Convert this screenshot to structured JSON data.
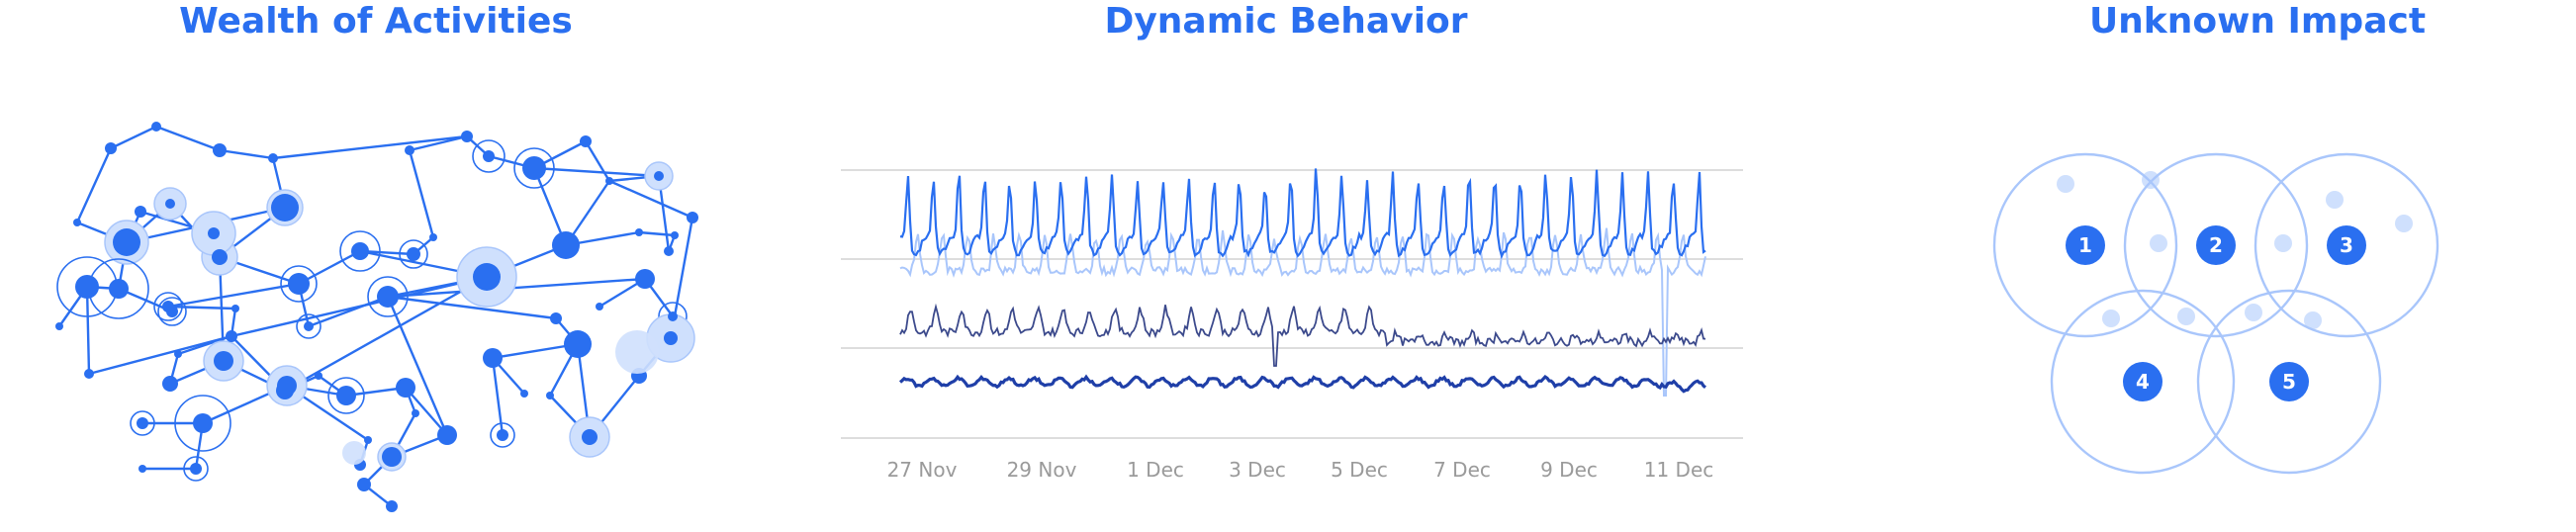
{
  "panels": {
    "network": {
      "title": "Wealth of Activities"
    },
    "chart": {
      "title": "Dynamic Behavior"
    },
    "venn": {
      "title": "Unknown Impact"
    }
  },
  "colors": {
    "accent": "#2a6ff0",
    "accent_light": "#a9c6fb",
    "accent_pale": "#cfe0fd",
    "series_dark": "#3c4a8c",
    "series_navy": "#1f3fa8",
    "grid": "#dddddd",
    "tick_text": "#9a9a9a"
  },
  "chart_data": {
    "type": "line",
    "x_tick_labels": [
      "27 Nov",
      "29 Nov",
      "1 Dec",
      "3 Dec",
      "5 Dec",
      "7 Dec",
      "9 Dec",
      "11 Dec"
    ],
    "grid": true
  },
  "venn": {
    "circles": [
      {
        "label": "1"
      },
      {
        "label": "2"
      },
      {
        "label": "3"
      },
      {
        "label": "4"
      },
      {
        "label": "5"
      }
    ]
  }
}
